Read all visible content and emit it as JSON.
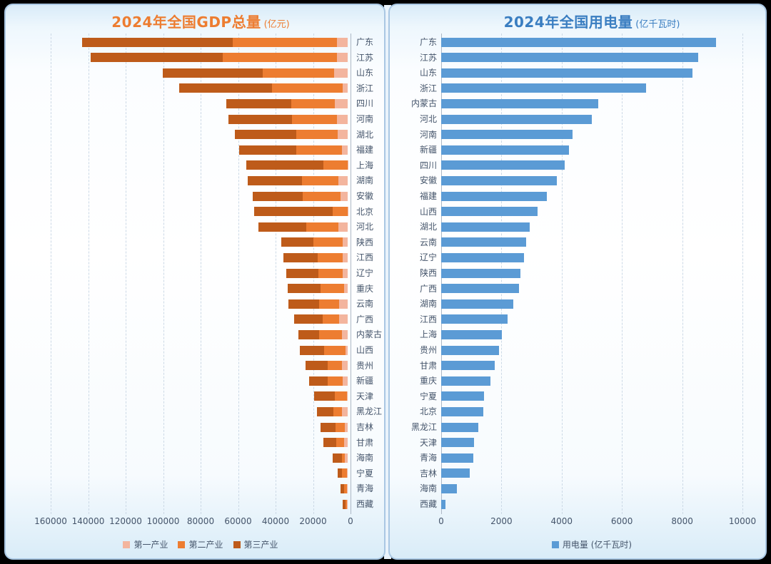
{
  "ui": {
    "page_background": "#eaf3fb",
    "card_border_color": "#a9c7e3",
    "label_color": "#44546a",
    "gridline_color": "#ccd9e6"
  },
  "chart_data": [
    {
      "id": "gdp",
      "type": "bar",
      "orientation": "horizontal",
      "stacked": true,
      "title": "2024年全国GDP总量",
      "title_unit": "(亿元)",
      "title_color": "#ED7D31",
      "categories": [
        "广东",
        "江苏",
        "山东",
        "浙江",
        "四川",
        "河南",
        "湖北",
        "福建",
        "上海",
        "湖南",
        "安徽",
        "北京",
        "河北",
        "陕西",
        "江西",
        "辽宁",
        "重庆",
        "云南",
        "广西",
        "内蒙古",
        "山西",
        "贵州",
        "新疆",
        "天津",
        "黑龙江",
        "吉林",
        "甘肃",
        "海南",
        "宁夏",
        "青海",
        "西藏"
      ],
      "series": [
        {
          "name": "第一产业",
          "color": "#F3B59E",
          "values": [
            5844,
            5538,
            7084,
            2734,
            6679,
            5808,
            5431,
            3208,
            97,
            4856,
            3863,
            107,
            4805,
            2811,
            2504,
            2790,
            2072,
            4392,
            4584,
            2979,
            1322,
            2966,
            2827,
            281,
            3232,
            1571,
            1742,
            1628,
            420,
            419,
            211
          ]
        },
        {
          "name": "第二产业",
          "color": "#ED7D31",
          "values": [
            55448,
            60988,
            38125,
            37519,
            23500,
            23966,
            21966,
            24409,
            12973,
            19476,
            20331,
            7776,
            17332,
            15384,
            13554,
            12735,
            12298,
            10722,
            8755,
            12175,
            11377,
            7873,
            7886,
            6413,
            4556,
            4943,
            4534,
            1577,
            2564,
            1534,
            996
          ]
        },
        {
          "name": "第三产业",
          "color": "#BE5B1A",
          "values": [
            80342,
            70482,
            53357,
            49847,
            34518,
            33816,
            32616,
            30144,
            40857,
            28899,
            26431,
            41960,
            25390,
            17343,
            18145,
            17088,
            17823,
            16420,
            15310,
            11161,
            12795,
            11828,
            9821,
            11330,
            8689,
            7847,
            6726,
            4731,
            2519,
            1997,
            1558
          ]
        }
      ],
      "value_axis": {
        "ticks": [
          160000,
          140000,
          120000,
          100000,
          80000,
          60000,
          40000,
          20000,
          0
        ],
        "min": 0,
        "max": 160000,
        "reversed": true,
        "position": "bottom"
      },
      "grid": true,
      "legend_position": "bottom"
    },
    {
      "id": "power",
      "type": "bar",
      "orientation": "horizontal",
      "stacked": false,
      "title": "2024年全国用电量",
      "title_unit": "(亿千瓦时)",
      "title_color": "#3A7EC1",
      "categories": [
        "广东",
        "江苏",
        "山东",
        "浙江",
        "内蒙古",
        "河北",
        "河南",
        "新疆",
        "四川",
        "安徽",
        "福建",
        "山西",
        "湖北",
        "云南",
        "辽宁",
        "陕西",
        "广西",
        "湖南",
        "江西",
        "上海",
        "贵州",
        "甘肃",
        "重庆",
        "宁夏",
        "北京",
        "黑龙江",
        "天津",
        "青海",
        "吉林",
        "海南",
        "西藏"
      ],
      "series": [
        {
          "name": "用电量 (亿千瓦时)",
          "color": "#5B9BD5",
          "values": [
            9120,
            8520,
            8350,
            6800,
            5210,
            4990,
            4350,
            4250,
            4100,
            3850,
            3500,
            3200,
            2950,
            2830,
            2760,
            2620,
            2580,
            2400,
            2200,
            2020,
            1920,
            1780,
            1630,
            1410,
            1390,
            1230,
            1100,
            1060,
            950,
            520,
            140
          ]
        }
      ],
      "value_axis": {
        "ticks": [
          0,
          2000,
          4000,
          6000,
          8000,
          10000
        ],
        "min": 0,
        "max": 10000,
        "reversed": false,
        "position": "bottom"
      },
      "grid": true,
      "legend_position": "bottom"
    }
  ]
}
